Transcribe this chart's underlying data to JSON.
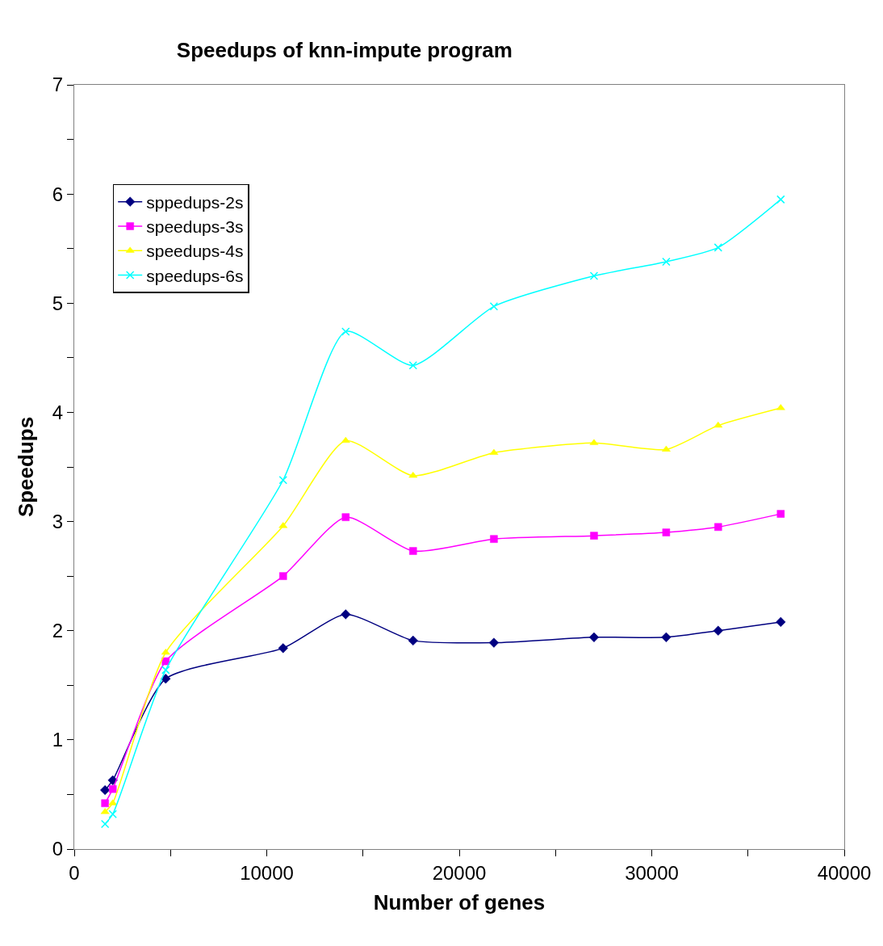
{
  "chart_data": {
    "type": "line",
    "title": "Speedups of knn-impute program",
    "xlabel": "Number of genes",
    "ylabel": "Speedups",
    "x": [
      1600,
      2000,
      4750,
      10850,
      14100,
      17600,
      21800,
      27000,
      30750,
      33450,
      36700
    ],
    "xlim": [
      0,
      40000
    ],
    "xticks": [
      0,
      {
        "value": 5000,
        "label": null
      },
      10000,
      {
        "value": 15000,
        "label": null
      },
      20000,
      {
        "value": 25000,
        "label": null
      },
      30000,
      {
        "value": 35000,
        "label": null
      },
      40000
    ],
    "ylim": [
      0,
      7
    ],
    "yticks": [
      0,
      {
        "value": 0.5,
        "label": null
      },
      1,
      {
        "value": 1.5,
        "label": null
      },
      2,
      {
        "value": 2.5,
        "label": null
      },
      3,
      {
        "value": 3.5,
        "label": null
      },
      4,
      {
        "value": 4.5,
        "label": null
      },
      5,
      {
        "value": 5.5,
        "label": null
      },
      6,
      {
        "value": 6.5,
        "label": null
      },
      7
    ],
    "legend": "top left",
    "line_style": "solid",
    "series": [
      {
        "name": "sppedups-2s",
        "color": "#000080",
        "marker": "diamond",
        "values": [
          0.54,
          0.63,
          1.56,
          1.84,
          2.15,
          1.91,
          1.89,
          1.94,
          1.94,
          2.0,
          2.08
        ]
      },
      {
        "name": "speedups-3s",
        "color": "#ff00ff",
        "marker": "square",
        "values": [
          0.42,
          0.55,
          1.72,
          2.5,
          3.04,
          2.73,
          2.84,
          2.87,
          2.9,
          2.95,
          3.07
        ]
      },
      {
        "name": "speedups-4s",
        "color": "#ffff00",
        "marker": "triangle",
        "values": [
          0.34,
          0.42,
          1.8,
          2.96,
          3.74,
          3.42,
          3.63,
          3.72,
          3.66,
          3.88,
          4.04
        ]
      },
      {
        "name": "speedups-6s",
        "color": "#00ffff",
        "marker": "cross",
        "values": [
          0.23,
          0.32,
          1.64,
          3.38,
          4.74,
          4.43,
          4.97,
          5.25,
          5.38,
          5.51,
          5.95
        ]
      }
    ]
  }
}
